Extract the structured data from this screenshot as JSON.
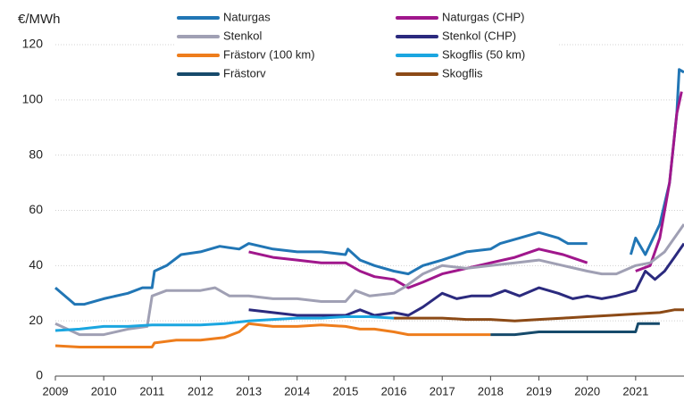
{
  "chart_data": {
    "type": "line",
    "y_label": "€/MWh",
    "xlim": [
      2009,
      2022
    ],
    "xticks": [
      2009,
      2010,
      2011,
      2012,
      2013,
      2014,
      2015,
      2016,
      2017,
      2018,
      2019,
      2020,
      2021
    ],
    "ylim": [
      0,
      120
    ],
    "yticks": [
      0,
      20,
      40,
      60,
      80,
      100,
      120
    ],
    "grid": true,
    "legend": "top",
    "series": [
      {
        "name": "Naturgas",
        "color": "#2176b5",
        "x": [
          2009,
          2009.4,
          2009.6,
          2010,
          2010.5,
          2010.8,
          2011,
          2011.05,
          2011.3,
          2011.6,
          2012,
          2012.4,
          2012.8,
          2013,
          2013.5,
          2014,
          2014.5,
          2015,
          2015.05,
          2015.3,
          2015.6,
          2016,
          2016.3,
          2016.6,
          2017,
          2017.5,
          2018,
          2018.2,
          2018.6,
          2019,
          2019.4,
          2019.6,
          2020,
          2020.5,
          2020.9,
          2021,
          2021.2,
          2021.5,
          2021.7,
          2021.85,
          2021.9,
          2022
        ],
        "values": [
          32,
          26,
          26,
          28,
          30,
          32,
          32,
          38,
          40,
          44,
          45,
          47,
          46,
          48,
          46,
          45,
          45,
          44,
          46,
          42,
          40,
          38,
          37,
          40,
          42,
          45,
          46,
          48,
          50,
          52,
          50,
          48,
          48,
          null,
          44,
          50,
          44,
          55,
          70,
          95,
          111,
          110
        ]
      },
      {
        "name": "Naturgas (CHP)",
        "color": "#a0178c",
        "x": [
          2013,
          2013.5,
          2014,
          2014.5,
          2015,
          2015.3,
          2015.6,
          2016,
          2016.3,
          2016.6,
          2017,
          2017.5,
          2018,
          2018.5,
          2019,
          2019.5,
          2020,
          2020.5,
          2021,
          2021.3,
          2021.5,
          2021.7,
          2021.85,
          2021.95
        ],
        "values": [
          45,
          43,
          42,
          41,
          41,
          38,
          36,
          35,
          32,
          34,
          37,
          39,
          41,
          43,
          46,
          44,
          41,
          null,
          38,
          40,
          50,
          70,
          95,
          103
        ]
      },
      {
        "name": "Stenkol",
        "color": "#a0a0b4",
        "x": [
          2009,
          2009.5,
          2010,
          2010.5,
          2010.9,
          2011,
          2011.3,
          2011.6,
          2012,
          2012.3,
          2012.6,
          2013,
          2013.5,
          2014,
          2014.5,
          2015,
          2015.2,
          2015.5,
          2016,
          2016.2,
          2016.6,
          2017,
          2017.5,
          2018,
          2018.5,
          2019,
          2019.5,
          2020,
          2020.3,
          2020.6,
          2021,
          2021.3,
          2021.6,
          2021.8,
          2022
        ],
        "values": [
          19,
          15,
          15,
          17,
          18,
          29,
          31,
          31,
          31,
          32,
          29,
          29,
          28,
          28,
          27,
          27,
          31,
          29,
          30,
          32,
          37,
          40,
          39,
          40,
          41,
          42,
          40,
          38,
          37,
          37,
          40,
          41,
          45,
          50,
          55
        ]
      },
      {
        "name": "Stenkol (CHP)",
        "color": "#2b2a7e",
        "x": [
          2013,
          2013.5,
          2014,
          2014.5,
          2015,
          2015.3,
          2015.6,
          2016,
          2016.3,
          2016.6,
          2017,
          2017.3,
          2017.6,
          2018,
          2018.3,
          2018.6,
          2019,
          2019.4,
          2019.7,
          2020,
          2020.3,
          2020.6,
          2021,
          2021.2,
          2021.4,
          2021.6,
          2021.8,
          2022
        ],
        "values": [
          24,
          23,
          22,
          22,
          22,
          24,
          22,
          23,
          22,
          25,
          30,
          28,
          29,
          29,
          31,
          29,
          32,
          30,
          28,
          29,
          28,
          29,
          31,
          38,
          35,
          38,
          43,
          48
        ]
      },
      {
        "name": "Frästorv (100 km)",
        "color": "#ee7d1c",
        "x": [
          2009,
          2009.5,
          2010,
          2010.5,
          2011,
          2011.05,
          2011.5,
          2012,
          2012.5,
          2012.8,
          2013,
          2013.5,
          2014,
          2014.5,
          2015,
          2015.3,
          2015.6,
          2016,
          2016.3,
          2016.6,
          2017,
          2017.5,
          2018
        ],
        "values": [
          11,
          10.5,
          10.5,
          10.5,
          10.5,
          12,
          13,
          13,
          14,
          16,
          19,
          18,
          18,
          18.5,
          18,
          17,
          17,
          16,
          15,
          15,
          15,
          15,
          15
        ]
      },
      {
        "name": "Skogflis (50 km)",
        "color": "#1ba6e0",
        "x": [
          2009,
          2009.5,
          2010,
          2010.5,
          2011,
          2011.5,
          2012,
          2012.5,
          2013,
          2013.5,
          2014,
          2014.5,
          2015,
          2015.5,
          2016
        ],
        "values": [
          16.5,
          17,
          18,
          18,
          18.5,
          18.5,
          18.5,
          19,
          20,
          20.5,
          21,
          21,
          21.5,
          21.5,
          21
        ]
      },
      {
        "name": "Frästorv",
        "color": "#164a6b",
        "x": [
          2018,
          2018.5,
          2019,
          2019.5,
          2020,
          2020.5,
          2021,
          2021.05,
          2021.5
        ],
        "values": [
          15,
          15,
          16,
          16,
          16,
          16,
          16,
          19,
          19
        ]
      },
      {
        "name": "Skogflis",
        "color": "#8c4a16",
        "x": [
          2016,
          2016.5,
          2017,
          2017.5,
          2018,
          2018.5,
          2019,
          2019.5,
          2020,
          2020.5,
          2021,
          2021.5,
          2021.8,
          2022
        ],
        "values": [
          21,
          21,
          21,
          20.5,
          20.5,
          20,
          20.5,
          21,
          21.5,
          22,
          22.5,
          23,
          24,
          24
        ]
      }
    ]
  }
}
